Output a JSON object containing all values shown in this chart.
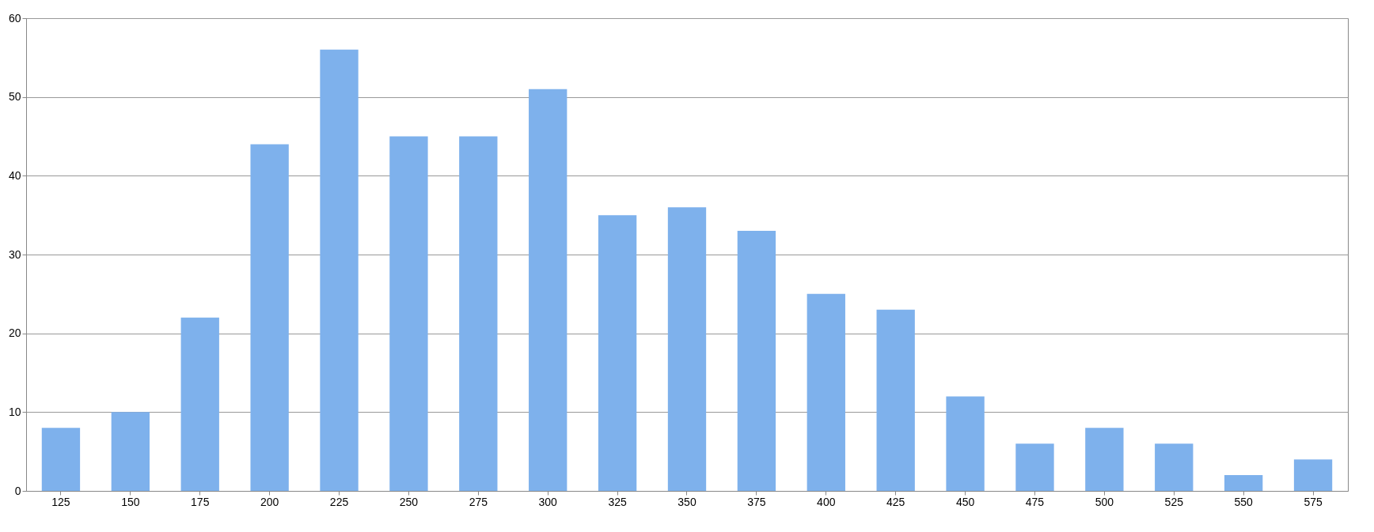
{
  "chart_data": {
    "type": "bar",
    "categories": [
      "125",
      "150",
      "175",
      "200",
      "225",
      "250",
      "275",
      "300",
      "325",
      "350",
      "375",
      "400",
      "425",
      "450",
      "475",
      "500",
      "525",
      "550",
      "575"
    ],
    "values": [
      8,
      10,
      22,
      44,
      56,
      45,
      45,
      51,
      35,
      36,
      33,
      25,
      23,
      12,
      6,
      8,
      6,
      2,
      4
    ],
    "color": "#7eb1ec",
    "ylim": [
      0,
      60
    ],
    "yticks": [
      0,
      10,
      20,
      30,
      40,
      50,
      60
    ],
    "grid": "y"
  }
}
